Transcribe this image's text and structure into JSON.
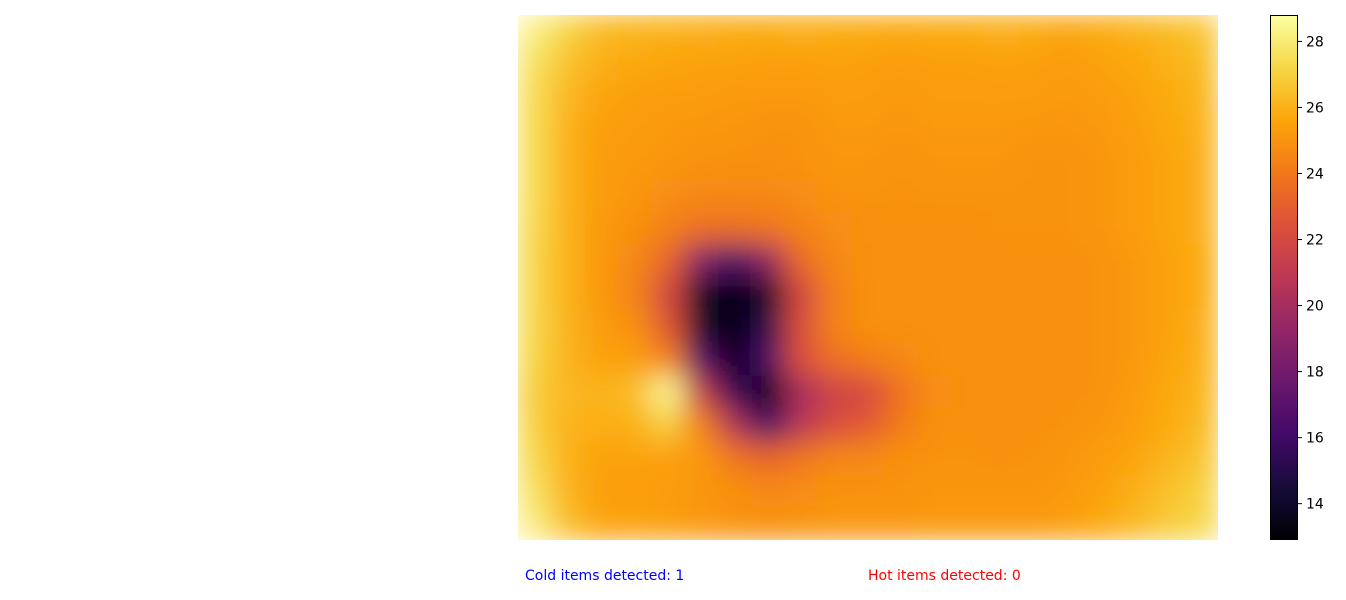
{
  "chart_data": {
    "type": "heatmap",
    "title": "",
    "xlabel": "",
    "ylabel": "",
    "colormap": "inferno",
    "value_range": [
      12.9,
      28.8
    ],
    "grid": false,
    "colorbar": {
      "ticks": [
        14,
        16,
        18,
        20,
        22,
        24,
        26,
        28
      ],
      "tick_labels": [
        "14",
        "16",
        "18",
        "20",
        "22",
        "24",
        "26",
        "28"
      ]
    },
    "grid_shape": [
      16,
      21
    ],
    "values": [
      [
        28.2,
        27.1,
        26.3,
        26.1,
        26.0,
        25.9,
        25.8,
        25.8,
        25.9,
        25.8,
        25.8,
        25.7,
        25.8,
        25.8,
        25.9,
        25.8,
        25.6,
        25.8,
        26.0,
        26.3,
        26.6
      ],
      [
        27.6,
        26.5,
        25.9,
        25.7,
        25.6,
        25.5,
        25.5,
        25.4,
        25.4,
        25.5,
        25.4,
        25.3,
        25.4,
        25.4,
        25.5,
        25.4,
        25.3,
        25.5,
        25.7,
        26.0,
        26.3
      ],
      [
        27.4,
        26.2,
        25.6,
        25.4,
        25.3,
        25.3,
        25.2,
        25.2,
        25.2,
        25.3,
        25.3,
        25.2,
        25.3,
        25.3,
        25.3,
        25.3,
        25.2,
        25.3,
        25.5,
        25.8,
        26.1
      ],
      [
        27.4,
        26.0,
        25.4,
        25.3,
        25.2,
        25.1,
        25.1,
        25.0,
        25.0,
        25.2,
        25.2,
        25.1,
        25.2,
        25.2,
        25.2,
        25.1,
        25.1,
        25.2,
        25.4,
        25.7,
        26.0
      ],
      [
        27.4,
        26.0,
        25.3,
        25.2,
        25.1,
        25.0,
        24.9,
        24.9,
        25.0,
        25.1,
        25.1,
        25.0,
        25.1,
        25.1,
        25.1,
        25.0,
        25.0,
        25.1,
        25.3,
        25.6,
        25.9
      ],
      [
        27.4,
        26.0,
        25.3,
        25.1,
        24.8,
        24.6,
        24.6,
        24.6,
        24.8,
        25.0,
        25.0,
        25.0,
        25.0,
        25.0,
        25.0,
        25.0,
        25.0,
        25.1,
        25.3,
        25.6,
        25.9
      ],
      [
        27.3,
        26.0,
        25.2,
        24.9,
        24.3,
        23.7,
        23.7,
        23.9,
        24.4,
        24.8,
        24.9,
        24.9,
        24.9,
        24.9,
        25.0,
        25.0,
        25.0,
        25.1,
        25.3,
        25.6,
        25.9
      ],
      [
        27.2,
        26.0,
        25.2,
        24.6,
        23.3,
        18.6,
        16.0,
        19.1,
        23.5,
        24.6,
        24.9,
        24.9,
        24.9,
        24.9,
        24.9,
        24.9,
        24.9,
        25.0,
        25.2,
        25.5,
        25.8
      ],
      [
        27.2,
        26.0,
        25.2,
        24.4,
        21.9,
        14.1,
        13.1,
        13.9,
        21.8,
        24.3,
        24.9,
        24.9,
        24.9,
        24.9,
        24.9,
        24.9,
        24.9,
        25.0,
        25.2,
        25.5,
        25.8
      ],
      [
        27.2,
        26.1,
        25.3,
        24.9,
        22.7,
        14.2,
        13.0,
        15.2,
        22.2,
        24.4,
        24.9,
        24.9,
        24.9,
        24.9,
        24.9,
        24.9,
        24.9,
        25.0,
        25.2,
        25.5,
        25.9
      ],
      [
        27.1,
        26.1,
        25.5,
        25.4,
        24.4,
        16.7,
        13.6,
        16.4,
        22.4,
        23.7,
        24.2,
        24.6,
        24.9,
        24.9,
        24.9,
        24.9,
        24.9,
        25.0,
        25.2,
        25.6,
        26.0
      ],
      [
        26.9,
        26.2,
        26.1,
        26.4,
        28.5,
        21.1,
        15.6,
        13.2,
        19.9,
        21.7,
        22.0,
        23.8,
        24.8,
        24.9,
        24.9,
        24.9,
        24.9,
        25.0,
        25.3,
        25.7,
        26.1
      ],
      [
        27.0,
        26.1,
        25.9,
        26.0,
        27.0,
        24.3,
        20.4,
        16.0,
        20.7,
        22.2,
        22.8,
        24.1,
        24.9,
        24.9,
        24.9,
        24.9,
        25.0,
        25.1,
        25.4,
        25.8,
        26.3
      ],
      [
        27.3,
        26.0,
        25.5,
        25.5,
        25.4,
        25.2,
        23.9,
        23.2,
        23.9,
        24.5,
        24.6,
        24.9,
        25.0,
        25.0,
        24.9,
        25.0,
        25.1,
        25.3,
        25.6,
        26.1,
        26.6
      ],
      [
        27.6,
        26.1,
        25.4,
        25.4,
        25.3,
        25.1,
        24.9,
        24.6,
        24.8,
        25.0,
        25.0,
        25.0,
        25.1,
        25.1,
        25.1,
        25.1,
        25.2,
        25.5,
        25.9,
        26.5,
        27.0
      ],
      [
        28.1,
        26.4,
        25.6,
        25.5,
        25.4,
        25.2,
        25.0,
        24.9,
        25.0,
        25.1,
        25.1,
        25.1,
        25.2,
        25.2,
        25.2,
        25.2,
        25.4,
        25.7,
        26.2,
        26.8,
        27.2
      ]
    ]
  },
  "status": {
    "cold_text": "Cold items detected: 1",
    "cold_color": "#0000ff",
    "hot_text": "Hot items detected: 0",
    "hot_color": "#ff0000"
  }
}
